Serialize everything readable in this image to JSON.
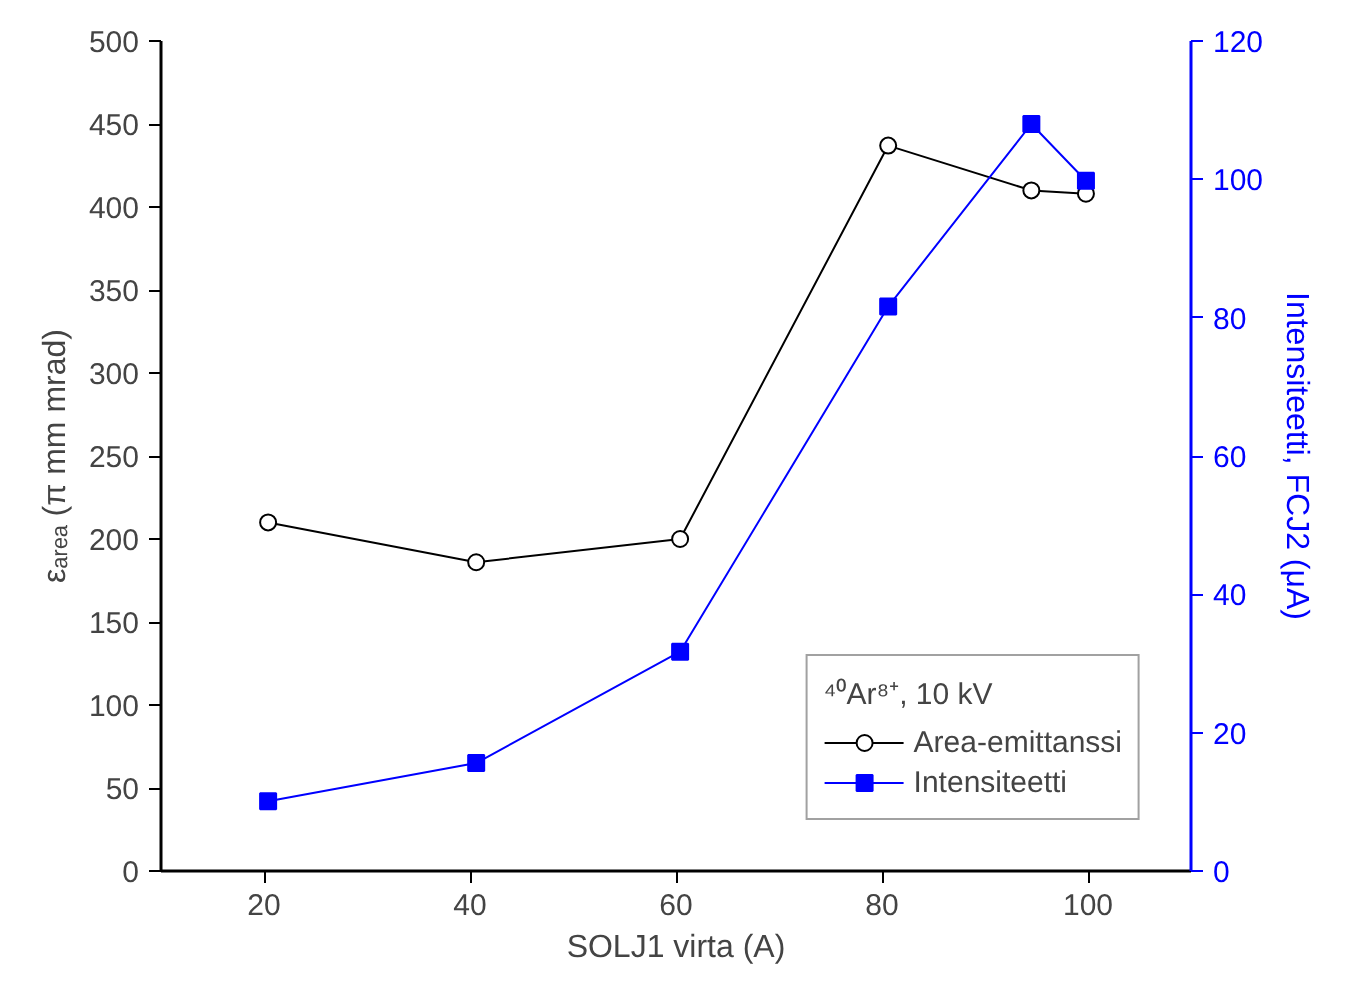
{
  "chart_data": {
    "type": "line",
    "xlabel": "SOLJ1 virta (A)",
    "ylabel": "εₐᵣₑₐ (π mm mrad)",
    "y2label": "Intensiteetti, FCJ2 (μA)",
    "legend_title": "⁴⁰Ar⁸⁺, 10 kV",
    "xlim": [
      10,
      110
    ],
    "xticks": [
      20,
      40,
      60,
      80,
      100
    ],
    "ylim": [
      0,
      500
    ],
    "yticks": [
      0,
      50,
      100,
      150,
      200,
      250,
      300,
      350,
      400,
      450,
      500
    ],
    "y2lim": [
      0,
      120
    ],
    "y2ticks": [
      0,
      20,
      40,
      60,
      80,
      100,
      120
    ],
    "grid": false,
    "legend": "bottom right",
    "series": [
      {
        "name": "Area-emittanssi",
        "color": "#000000",
        "marker": "circle",
        "x": [
          20.4,
          40.6,
          60.4,
          80.6,
          94.5,
          99.8
        ],
        "values": [
          210,
          186,
          200,
          437,
          410,
          408
        ]
      },
      {
        "name": "Intensiteetti",
        "color": "#0000ff",
        "marker": "square",
        "axis": "y2",
        "x": [
          20.4,
          40.6,
          60.4,
          80.6,
          94.5,
          99.8
        ],
        "values": [
          10.1,
          15.6,
          31.7,
          81.6,
          108,
          99.8
        ]
      }
    ]
  }
}
